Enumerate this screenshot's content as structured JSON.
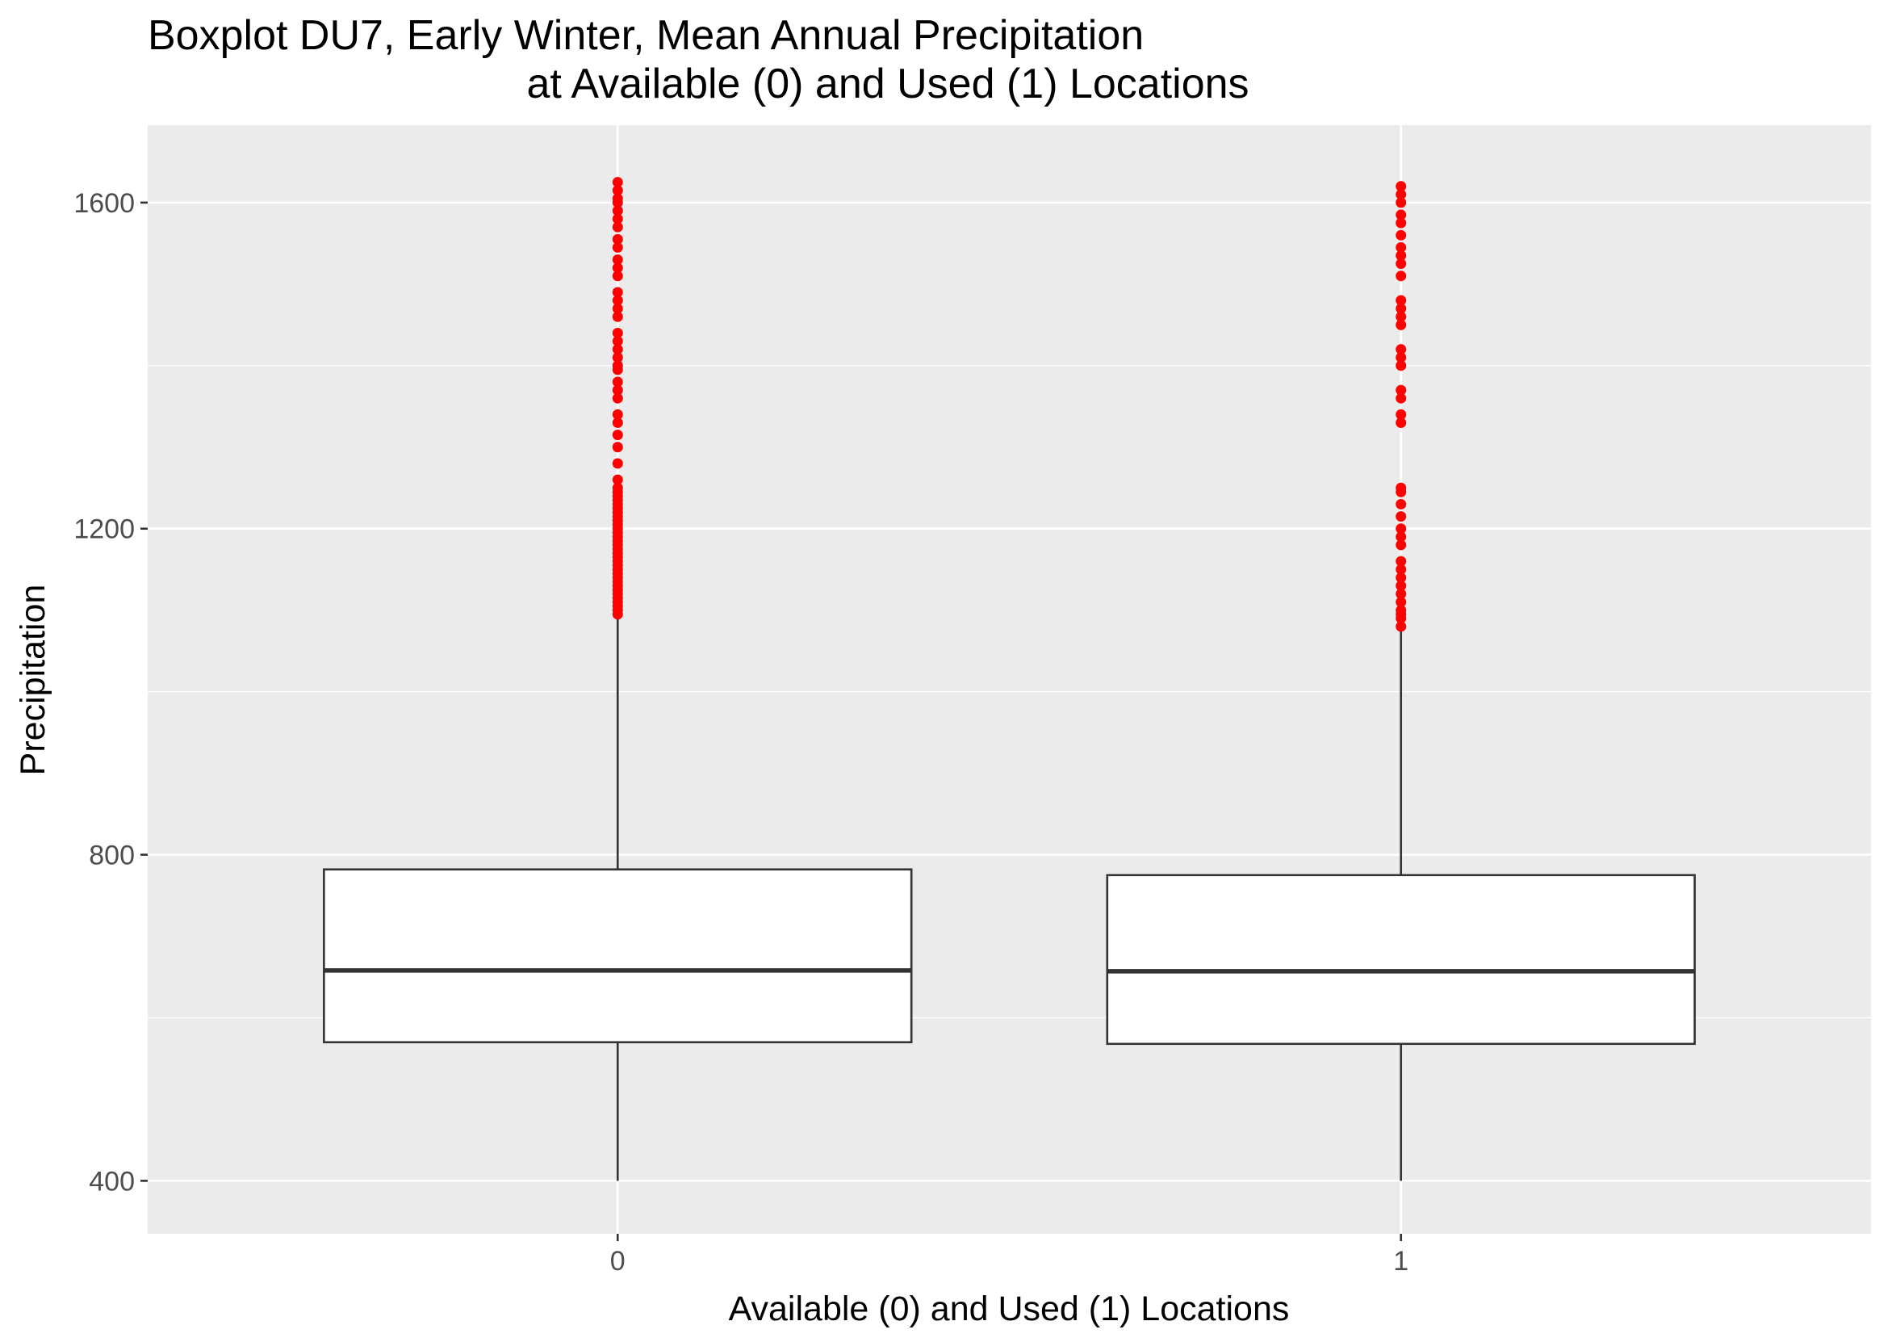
{
  "chart_data": {
    "type": "boxplot",
    "title": "Boxplot DU7, Early Winter, Mean Annual Precipitation",
    "subtitle": "at Available (0) and Used (1) Locations",
    "xlabel": "Available (0) and Used (1) Locations",
    "ylabel": "Precipitation",
    "categories": [
      "0",
      "1"
    ],
    "y_ticks": [
      400,
      800,
      1200,
      1600
    ],
    "ylim": [
      335,
      1695
    ],
    "grid": true,
    "background": "#EBEBEB",
    "grid_color": "#FFFFFF",
    "box_fill": "#FFFFFF",
    "box_line": "#333333",
    "outlier_color": "#FF0000",
    "boxes": [
      {
        "category": "0",
        "whisker_low": 400,
        "q1": 570,
        "median": 658,
        "q3": 782,
        "whisker_high": 1090,
        "outliers": [
          1095,
          1100,
          1105,
          1110,
          1115,
          1120,
          1125,
          1130,
          1135,
          1140,
          1145,
          1150,
          1155,
          1160,
          1165,
          1170,
          1175,
          1180,
          1185,
          1190,
          1195,
          1200,
          1205,
          1210,
          1215,
          1220,
          1225,
          1230,
          1235,
          1240,
          1245,
          1250,
          1260,
          1280,
          1300,
          1315,
          1330,
          1340,
          1360,
          1370,
          1380,
          1395,
          1400,
          1410,
          1420,
          1430,
          1440,
          1460,
          1470,
          1480,
          1490,
          1510,
          1520,
          1530,
          1545,
          1555,
          1570,
          1580,
          1590,
          1600,
          1605,
          1615,
          1625
        ]
      },
      {
        "category": "1",
        "whisker_low": 400,
        "q1": 568,
        "median": 657,
        "q3": 775,
        "whisker_high": 1080,
        "outliers": [
          1080,
          1090,
          1095,
          1100,
          1110,
          1120,
          1130,
          1140,
          1150,
          1160,
          1180,
          1190,
          1200,
          1215,
          1230,
          1245,
          1250,
          1330,
          1340,
          1360,
          1370,
          1400,
          1410,
          1420,
          1450,
          1460,
          1470,
          1480,
          1510,
          1525,
          1535,
          1545,
          1560,
          1575,
          1585,
          1600,
          1610,
          1620
        ]
      }
    ]
  }
}
